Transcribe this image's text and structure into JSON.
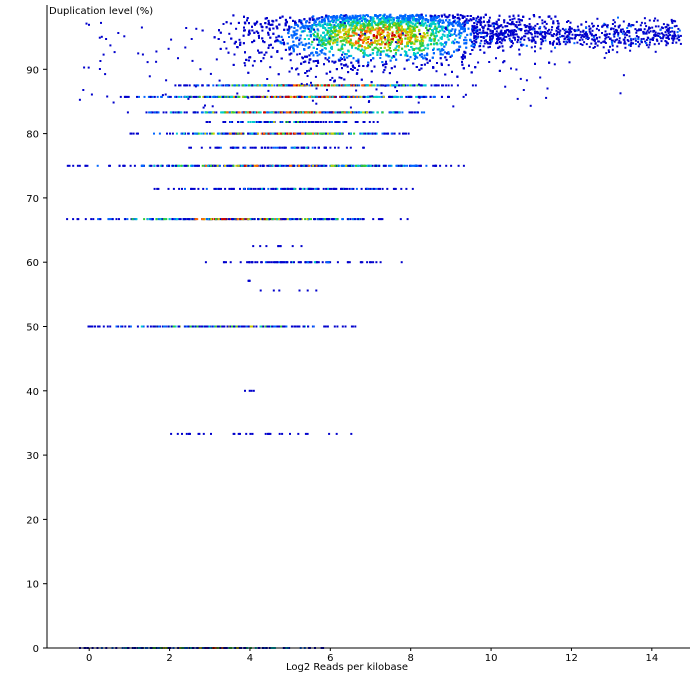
{
  "chart_data": {
    "type": "scatter",
    "title": "",
    "ylabel": "Duplication level (%)",
    "xlabel": "Log2 Reads per kilobase",
    "xlim": [
      -1.05,
      14.95
    ],
    "ylim": [
      0,
      100
    ],
    "x_ticks": [
      "0",
      "2",
      "4",
      "6",
      "8",
      "10",
      "12",
      "14"
    ],
    "y_ticks": [
      "0",
      "10",
      "20",
      "30",
      "40",
      "50",
      "60",
      "70",
      "80",
      "90"
    ],
    "color_scale": [
      "#0000cc",
      "#0066ff",
      "#00cccc",
      "#33cc33",
      "#cccc00",
      "#ff6600",
      "#cc0000"
    ],
    "point_color_low": "#0000cc",
    "point_color_high": "#cc0000",
    "levels": [
      {
        "y": 0.0,
        "x_min": -0.3,
        "x_max": 5.9,
        "density": 0.7
      },
      {
        "y": 33.3,
        "x_min": 1.7,
        "x_max": 6.5,
        "density": 0.15
      },
      {
        "y": 40.0,
        "x_min": 3.7,
        "x_max": 4.2,
        "density": 0.05
      },
      {
        "y": 50.0,
        "x_min": -0.2,
        "x_max": 6.6,
        "density": 0.65
      },
      {
        "y": 55.6,
        "x_min": 3.5,
        "x_max": 6.3,
        "density": 0.05
      },
      {
        "y": 57.1,
        "x_min": 3.9,
        "x_max": 4.0,
        "density": 0.05
      },
      {
        "y": 60.0,
        "x_min": 2.4,
        "x_max": 8.0,
        "density": 0.3
      },
      {
        "y": 62.5,
        "x_min": 3.6,
        "x_max": 5.5,
        "density": 0.1
      },
      {
        "y": 66.7,
        "x_min": -0.6,
        "x_max": 7.9,
        "density": 0.8
      },
      {
        "y": 71.4,
        "x_min": 1.0,
        "x_max": 8.4,
        "density": 0.4
      },
      {
        "y": 75.0,
        "x_min": -0.6,
        "x_max": 9.4,
        "density": 0.75
      },
      {
        "y": 77.8,
        "x_min": 2.3,
        "x_max": 7.0,
        "density": 0.35
      },
      {
        "y": 80.0,
        "x_min": 1.0,
        "x_max": 8.0,
        "density": 0.85
      },
      {
        "y": 81.8,
        "x_min": 2.6,
        "x_max": 7.2,
        "density": 0.5
      },
      {
        "y": 83.3,
        "x_min": 0.9,
        "x_max": 9.0,
        "density": 0.9
      },
      {
        "y": 85.7,
        "x_min": 0.7,
        "x_max": 9.3,
        "density": 0.9
      },
      {
        "y": 87.5,
        "x_min": 1.9,
        "x_max": 9.6,
        "density": 0.9
      }
    ],
    "dense_cluster": {
      "x_center": 7.2,
      "y_center": 95.0,
      "x_range": [
        2.6,
        14.8
      ],
      "y_range": [
        85.0,
        98.5
      ]
    }
  }
}
